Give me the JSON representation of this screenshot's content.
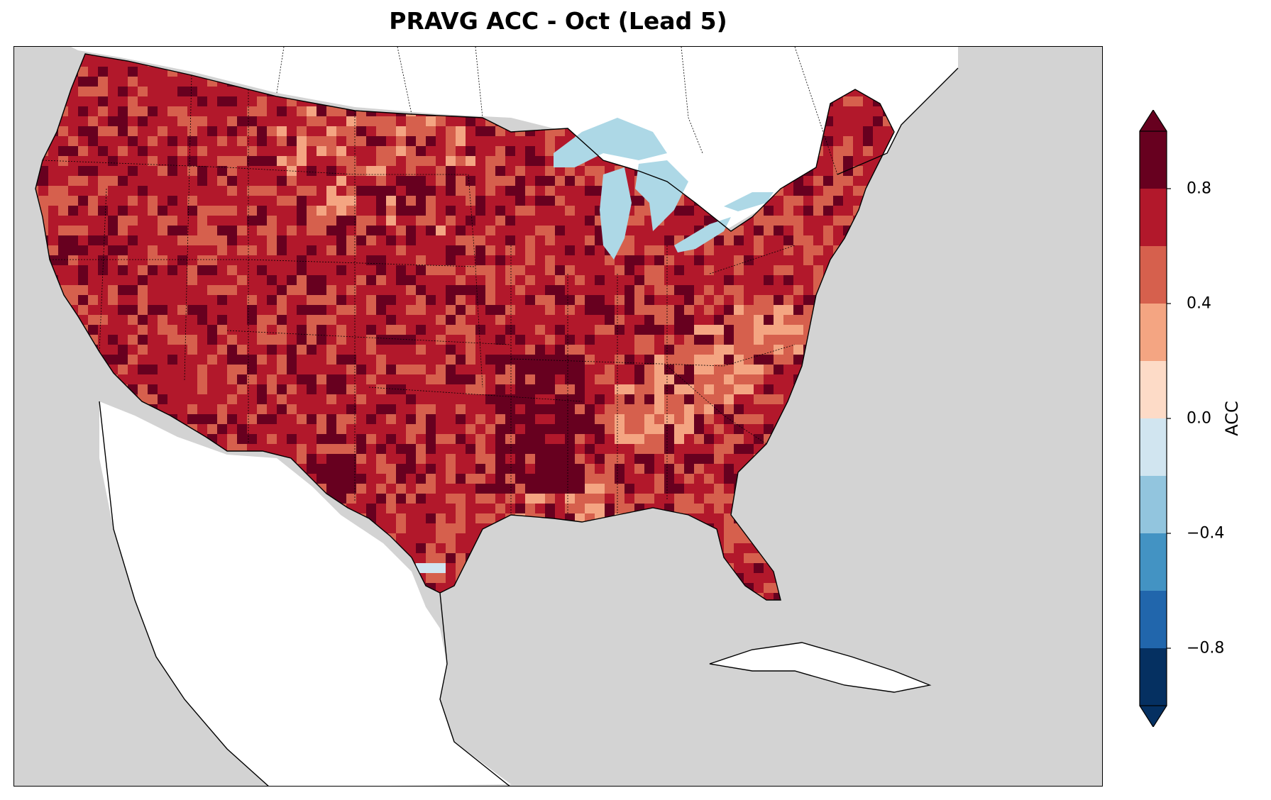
{
  "title": "PRAVG ACC - Oct (Lead 5)",
  "colorbar": {
    "label": "ACC",
    "ticks": [
      "0.8",
      "0.4",
      "0.0",
      "−0.4",
      "−0.8"
    ],
    "tick_values": [
      0.8,
      0.4,
      0.0,
      -0.4,
      -0.8
    ],
    "levels": [
      -1.0,
      -0.8,
      -0.6,
      -0.4,
      -0.2,
      0.0,
      0.2,
      0.4,
      0.6,
      0.8,
      1.0
    ],
    "colors": [
      "#053061",
      "#2166ac",
      "#4393c3",
      "#92c5de",
      "#d1e5f0",
      "#fddbc7",
      "#f4a582",
      "#d6604d",
      "#b2182b",
      "#67001f"
    ],
    "extend": "both"
  },
  "map": {
    "region": "Contiguous United States",
    "ocean_color": "#d3d3d3",
    "land_color": "#ffffff",
    "lake_color": "#add8e6",
    "dominant_range": [
      0.6,
      0.8
    ]
  }
}
